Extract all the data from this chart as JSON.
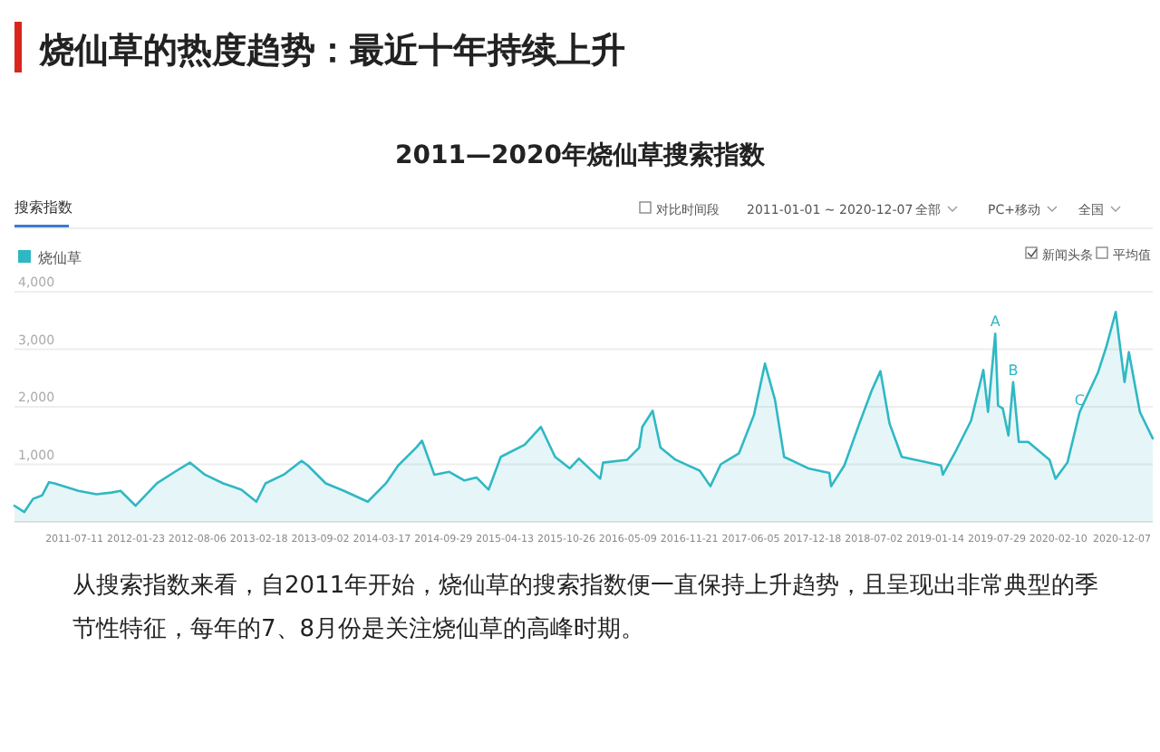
{
  "chart_data": {
    "type": "area",
    "title": "烧仙草的热度趋势：最近十年持续上升",
    "subtitle": "2011—2020年烧仙草搜索指数",
    "annotations": [
      "搜索指数",
      "对比时间段",
      "2011-01-01 ~ 2020-12-07",
      "全部",
      "PC+移动",
      "全国",
      "新闻头条",
      "平均值",
      {
        "text": "A",
        "x": "2019-07-24",
        "y": 3270
      },
      {
        "text": "B",
        "x": "2019-09-19",
        "y": 2430
      },
      {
        "text": "C",
        "x": "2020-04-18",
        "y": 1910
      },
      "从搜索指数来看，自2011年开始，烧仙草的搜索指数便一直保持上升趋势，且呈现出非常典型的季节性特征，每年的7、8月份是关注烧仙草的高峰时期。"
    ],
    "legend": "top left",
    "grid": "y",
    "marker": "none",
    "line_style": "solid",
    "xlim": [
      "2011-01-01",
      "2020-12-07"
    ],
    "xticks": [
      "2011-07-11",
      "2012-01-23",
      "2012-08-06",
      "2013-02-18",
      "2013-09-02",
      "2014-03-17",
      "2014-09-29",
      "2015-04-13",
      "2015-10-26",
      "2016-05-09",
      "2016-11-21",
      "2017-06-05",
      "2017-12-18",
      "2018-07-02",
      "2019-01-14",
      "2019-07-29",
      "2020-02-10",
      "2020-12-07"
    ],
    "ylim": [
      0,
      4000
    ],
    "yticks": [
      {
        "value": 1000,
        "label": "1,000"
      },
      {
        "value": 2000,
        "label": "2,000"
      },
      {
        "value": 3000,
        "label": "3,000"
      },
      {
        "value": 4000,
        "label": "4,000"
      }
    ],
    "x": [
      "2011-01-01",
      "2011-02-01",
      "2011-03-01",
      "2011-03-30",
      "2011-04-21",
      "2011-05-08",
      "2011-07-24",
      "2011-09-19",
      "2011-11-07",
      "2011-12-05",
      "2012-01-22",
      "2012-03-30",
      "2012-05-26",
      "2012-07-13",
      "2012-08-30",
      "2012-10-27",
      "2012-12-24",
      "2013-02-10",
      "2013-03-11",
      "2013-05-08",
      "2013-07-04",
      "2013-07-24",
      "2013-09-19",
      "2013-11-16",
      "2014-01-31",
      "2014-03-30",
      "2014-05-08",
      "2014-07-04",
      "2014-07-23",
      "2014-08-31",
      "2014-10-18",
      "2014-12-05",
      "2015-01-13",
      "2015-02-20",
      "2015-03-31",
      "2015-06-15",
      "2015-08-06",
      "2015-09-20",
      "2015-11-06",
      "2015-12-05",
      "2016-02-11",
      "2016-02-20",
      "2016-05-07",
      "2016-06-14",
      "2016-06-24",
      "2016-07-27",
      "2016-08-21",
      "2016-10-08",
      "2016-12-24",
      "2017-01-27",
      "2017-03-01",
      "2017-04-28",
      "2017-06-15",
      "2017-07-20",
      "2017-08-21",
      "2017-09-19",
      "2017-12-05",
      "2018-02-10",
      "2018-02-16",
      "2018-03-30",
      "2018-05-17",
      "2018-06-25",
      "2018-07-23",
      "2018-08-21",
      "2018-09-29",
      "2018-12-05",
      "2019-02-01",
      "2019-02-07",
      "2019-03-21",
      "2019-05-08",
      "2019-06-16",
      "2019-07-01",
      "2019-07-24",
      "2019-08-02",
      "2019-08-17",
      "2019-09-04",
      "2019-09-19",
      "2019-10-07",
      "2019-11-06",
      "2020-01-13",
      "2020-02-01",
      "2020-03-10",
      "2020-04-18",
      "2020-06-15",
      "2020-07-13",
      "2020-08-11",
      "2020-09-08",
      "2020-09-22",
      "2020-10-27",
      "2020-12-07"
    ],
    "series": [
      {
        "name": "烧仙草",
        "color": "#2fb8c4",
        "values": [
          280,
          170,
          400,
          460,
          690,
          670,
          540,
          480,
          510,
          540,
          280,
          670,
          870,
          1030,
          820,
          670,
          560,
          350,
          670,
          820,
          1060,
          980,
          670,
          540,
          350,
          670,
          980,
          1290,
          1410,
          820,
          870,
          720,
          770,
          560,
          1130,
          1340,
          1650,
          1130,
          930,
          1100,
          750,
          1030,
          1080,
          1290,
          1650,
          1930,
          1290,
          1080,
          890,
          620,
          1000,
          1190,
          1860,
          2750,
          2120,
          1130,
          930,
          850,
          620,
          980,
          1710,
          2280,
          2620,
          1710,
          1130,
          1050,
          980,
          820,
          1240,
          1760,
          2640,
          1910,
          3270,
          2020,
          1970,
          1500,
          2430,
          1390,
          1390,
          1080,
          750,
          1030,
          1910,
          2590,
          3060,
          3650,
          2430,
          2950,
          1910,
          1450
        ]
      }
    ]
  }
}
